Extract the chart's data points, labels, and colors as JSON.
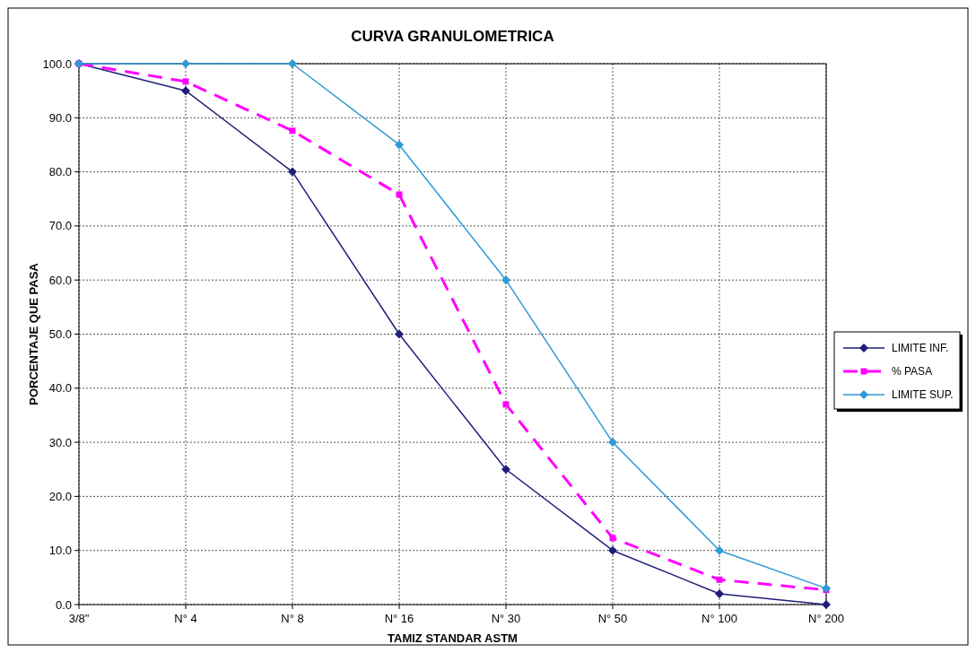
{
  "chart_data": {
    "type": "line",
    "title": "CURVA GRANULOMETRICA",
    "xlabel": "TAMIZ STANDAR ASTM",
    "ylabel": "PORCENTAJE QUE PASA",
    "categories": [
      "3/8\"",
      "N° 4",
      "N° 8",
      "N° 16",
      "N° 30",
      "N° 50",
      "N° 100",
      "N° 200"
    ],
    "ylim": [
      0,
      100
    ],
    "yticks": [
      {
        "value": 0,
        "label": "0.0"
      },
      {
        "value": 10,
        "label": "10.0"
      },
      {
        "value": 20,
        "label": "20.0"
      },
      {
        "value": 30,
        "label": "30.0"
      },
      {
        "value": 40,
        "label": "40.0"
      },
      {
        "value": 50,
        "label": "50.0"
      },
      {
        "value": 60,
        "label": "60.0"
      },
      {
        "value": 70,
        "label": "70.0"
      },
      {
        "value": 80,
        "label": "80.0"
      },
      {
        "value": 90,
        "label": "90.0"
      },
      {
        "value": 100,
        "label": "100.0"
      }
    ],
    "grid": true,
    "legend": "right",
    "series": [
      {
        "name": "LIMITE INF.",
        "color": "#1f1f7a",
        "marker": "diamond",
        "line_style": "solid",
        "values": [
          100,
          95,
          80,
          50,
          25,
          10,
          2,
          0
        ]
      },
      {
        "name": "% PASA",
        "color": "#ff00ff",
        "marker": "square",
        "line_style": "dashed",
        "values": [
          100,
          96.7,
          87.6,
          75.8,
          37.0,
          12.3,
          4.6,
          2.7
        ]
      },
      {
        "name": "LIMITE SUP.",
        "color": "#2e9ad6",
        "marker": "diamond",
        "line_style": "solid",
        "values": [
          100,
          100,
          100,
          85,
          60,
          30,
          10,
          3
        ]
      }
    ]
  }
}
